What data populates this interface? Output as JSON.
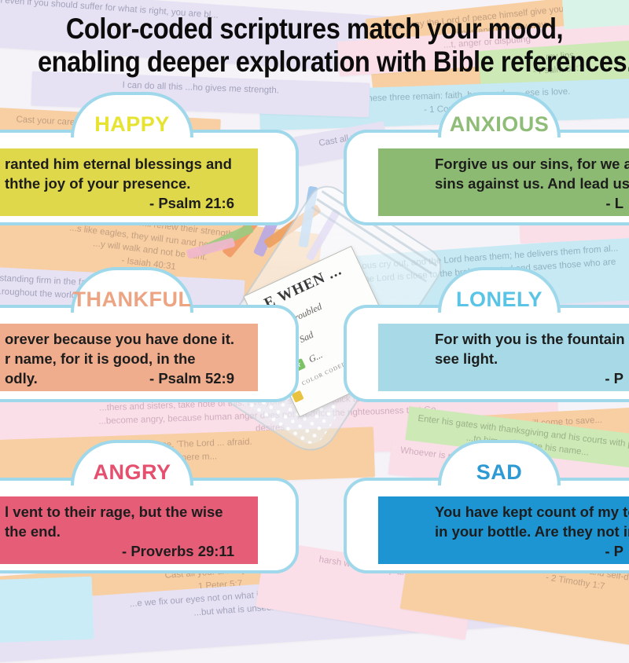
{
  "title": {
    "line1": "Color-coded scriptures match your mood,",
    "line2": "enabling deeper exploration with Bible references."
  },
  "cards": [
    {
      "mood": "HAPPY",
      "accent": "#e7e331",
      "fill": "#dfd84b",
      "quote_lines": [
        "ranted him eternal blessings and",
        "ththe joy of your presence.",
        ""
      ],
      "reference": "- Psalm 21:6"
    },
    {
      "mood": "ANXIOUS",
      "accent": "#8fbc77",
      "fill": "#8cba72",
      "quote_lines": [
        "Forgive us our sins, for we also",
        "sins against us. And lead us not",
        ""
      ],
      "reference": "- L"
    },
    {
      "mood": "THANKFUL",
      "accent": "#eca482",
      "fill": "#efad8d",
      "quote_lines": [
        "orever because you have done it.",
        "r name, for it is good, in the",
        "odly."
      ],
      "reference": "- Psalm 52:9"
    },
    {
      "mood": "LONELY",
      "accent": "#5ac4e6",
      "fill": "#a7dae6",
      "quote_lines": [
        "For with you is the fountain of",
        "see light.",
        ""
      ],
      "reference": "- P"
    },
    {
      "mood": "ANGRY",
      "accent": "#e5506f",
      "fill": "#e65d78",
      "quote_lines": [
        "l vent to their rage, but the wise",
        "the end.",
        ""
      ],
      "reference": "- Proverbs 29:11"
    },
    {
      "mood": "SAD",
      "accent": "#2e9ad3",
      "fill": "#1e95d3",
      "quote_lines": [
        "You have kept count of my tos",
        "in your bottle. Are they not in y",
        ""
      ],
      "reference": "- P"
    }
  ],
  "jar": {
    "label_title": "E WHEN ...",
    "cross_glyph": "✝",
    "items": [
      {
        "label": "Troubled",
        "color": "#b3a8e0"
      },
      {
        "label": "Sad",
        "color": "#7db4e6"
      },
      {
        "label": "G...",
        "color": "#7cc266"
      }
    ],
    "footer": "COLOR CODED BIBLE VE..."
  },
  "background": {
    "strips": [
      {
        "color": "lavender",
        "text": "ul even if you should suffer for what is right, you are bl..."
      },
      {
        "color": "orange",
        "text": "Now may the Lord of peace himself give you peace at all times and in every way.\nThe Lord be with all of you."
      },
      {
        "color": "pink",
        "text": "...t, anger or disputing"
      },
      {
        "color": "green",
        "text": "...my lips.\n- Psalm 34:1"
      },
      {
        "color": "blue",
        "text": "nd now these three remain: faith, hope and ... ...ese is love.\n- 1 Corinthia..."
      },
      {
        "color": "lavender",
        "text": "I can do all this ...ho gives me strength."
      },
      {
        "color": "orange",
        "text": "Cast your cares on th..."
      },
      {
        "color": "lavender",
        "text": "Cast all y..."
      },
      {
        "color": "orange",
        "text": "hope in the Lord will renew their strength.\n...s like eagles, they will run and not gro...\n...y will walk and not be faint.\n- Isaiah 40:31"
      },
      {
        "color": "lavender",
        "text": ", standing firm in the faith...\n...roughout the world is u..."
      },
      {
        "color": "blue",
        "text": "...ous cry out, and the Lord hears them; he delivers them from al...\nThe Lord is close to the brokenhearted and saves those who are crus...\n- Psalm 34:17-18"
      },
      {
        "color": "lavender",
        "text": "\"Do not le...    ...elieve in God; believe a..."
      },
      {
        "color": "pink",
        "text": "...thers and sisters, take note of this: Everyone should be quick to listen, slow to spe...\n...become angry, because human anger does not produce the righteousness that Go...\ndesires.\n- James 1:19-20"
      },
      {
        "color": "orange",
        "text": "y with confidence. 'The Lord ...    afraid.\nWhat can mere m...\nDo n..."
      },
      {
        "color": "orange",
        "text": "...n every situation, by prayer and petition...\n...ent your requests to God."
      },
      {
        "color": "orange",
        "text": "...he will come to save...\n- Isaiah 35:4"
      },
      {
        "color": "green",
        "text": "Enter his gates with thanksgiving and his courts with p...\n...to him and praise his name...\n...lm 100:4"
      },
      {
        "color": "pink",
        "text": "Whoever is patient ha..."
      },
      {
        "color": "orange",
        "text": "Cast all your anxiety on h...\n1 Peter 5:7"
      },
      {
        "color": "lavender",
        "text": "...e we fix our eyes not on what is seen, but on what is unseen,\n...but what is unseen is eternal."
      },
      {
        "color": "pink",
        "text": "harsh word stirs up ang..."
      },
      {
        "color": "orange",
        "text": "For the Spirit God gave us does not make us timid\nbut gives us power, love and self-discipline.\n- 2 Timothy 1:7"
      }
    ]
  }
}
